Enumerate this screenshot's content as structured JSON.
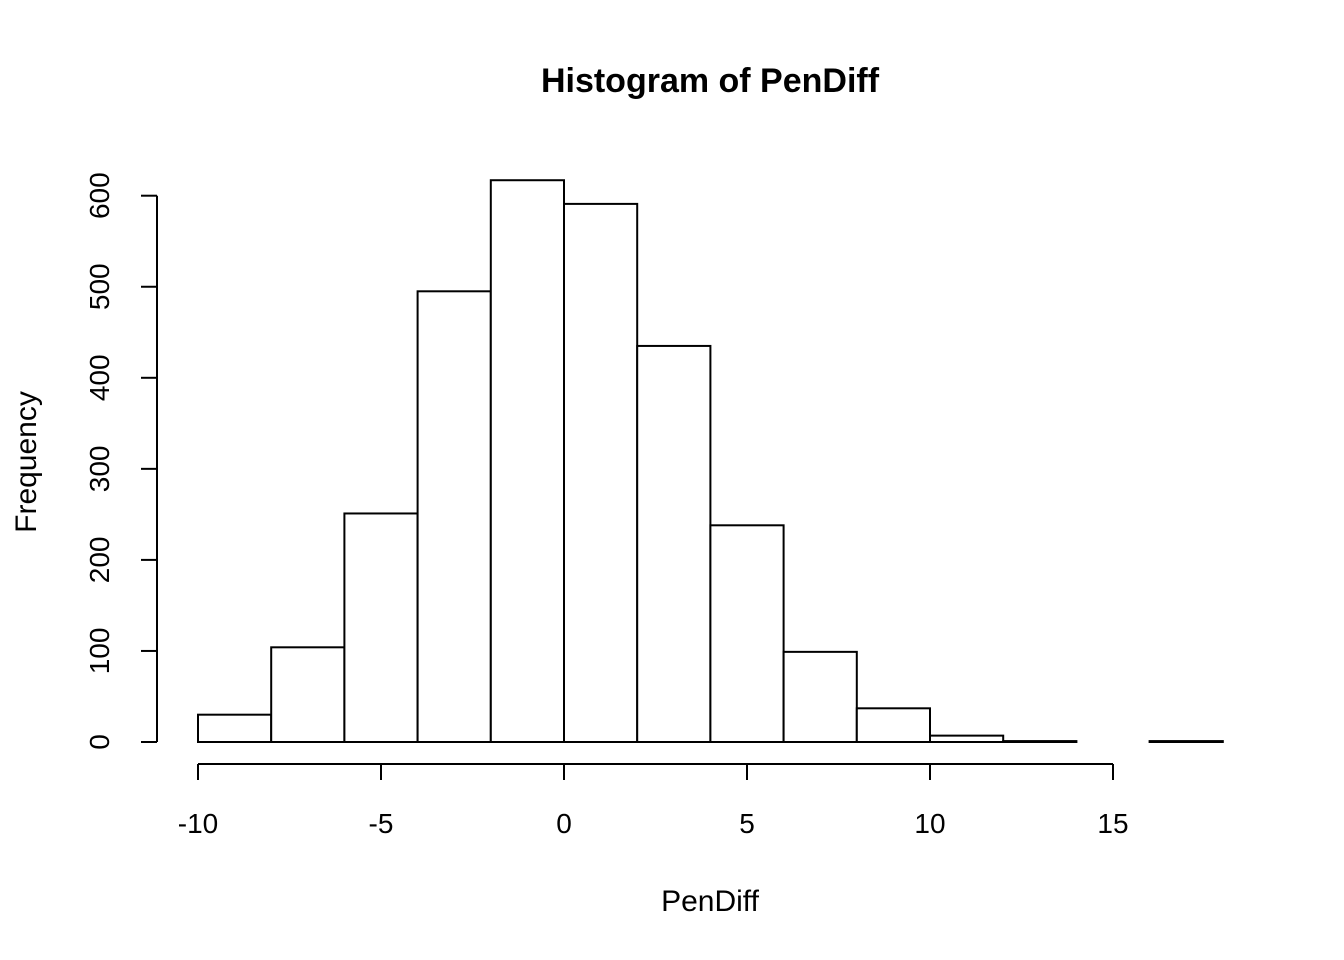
{
  "chart_data": {
    "type": "bar",
    "title": "Histogram of PenDiff",
    "xlabel": "PenDiff",
    "ylabel": "Frequency",
    "bin_edges": [
      -10,
      -8,
      -6,
      -4,
      -2,
      0,
      2,
      4,
      6,
      8,
      10,
      12,
      14,
      16,
      18
    ],
    "values": [
      30,
      104,
      251,
      495,
      617,
      591,
      435,
      238,
      99,
      37,
      7,
      1,
      0,
      1
    ],
    "xlim": [
      -10,
      18
    ],
    "ylim": [
      0,
      617
    ],
    "x_ticks": [
      -10,
      -5,
      0,
      5,
      10,
      15
    ],
    "x_tick_labels": [
      "-10",
      "-5",
      "0",
      "5",
      "10",
      "15"
    ],
    "y_ticks": [
      0,
      100,
      200,
      300,
      400,
      500,
      600
    ],
    "y_tick_labels": [
      "0",
      "100",
      "200",
      "300",
      "400",
      "500",
      "600"
    ],
    "grid": false,
    "bar_fill": "#ffffff",
    "bar_stroke": "#000000"
  }
}
